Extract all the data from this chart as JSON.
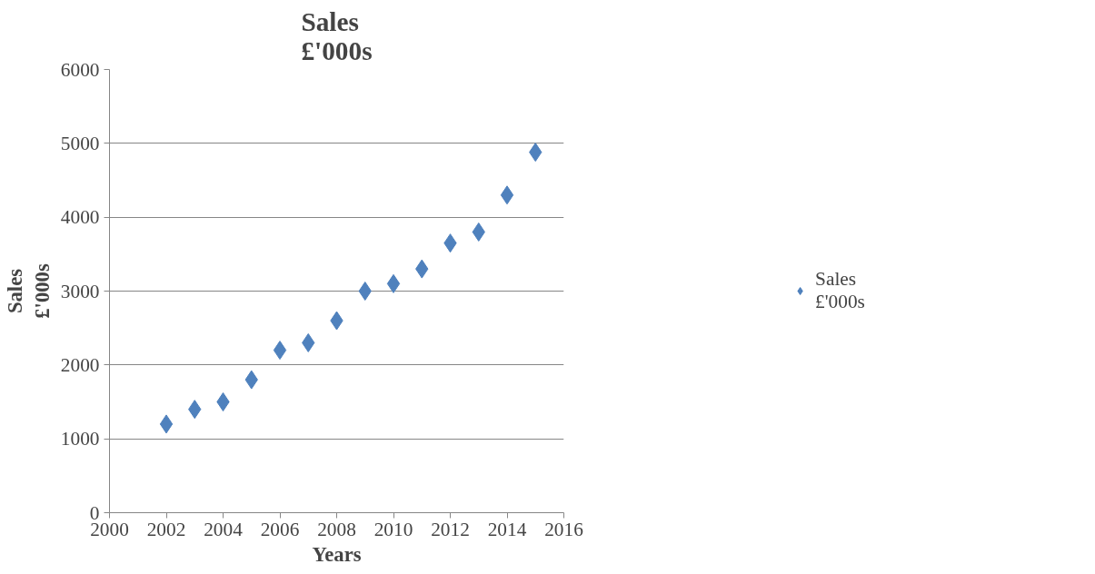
{
  "chart_data": {
    "type": "scatter",
    "title": "Sales\n£'000s",
    "xlabel": "Years",
    "ylabel": "Sales\n£'000s",
    "x": [
      2002,
      2003,
      2004,
      2005,
      2006,
      2007,
      2008,
      2009,
      2010,
      2011,
      2012,
      2013,
      2014,
      2015
    ],
    "series": [
      {
        "name": "Sales\n£'000s",
        "color": "#4f81bd",
        "values": [
          1200,
          1400,
          1500,
          1800,
          2200,
          2300,
          2600,
          3000,
          3100,
          3300,
          3650,
          3800,
          4300,
          4880
        ]
      }
    ],
    "xlim": [
      2000,
      2016
    ],
    "xticks": [
      2000,
      2002,
      2004,
      2006,
      2008,
      2010,
      2012,
      2014,
      2016
    ],
    "ylim": [
      0,
      6000
    ],
    "yticks": [
      0,
      1000,
      2000,
      3000,
      4000,
      5000,
      6000
    ],
    "grid": "y",
    "legend": "right",
    "marker": "diamond"
  }
}
